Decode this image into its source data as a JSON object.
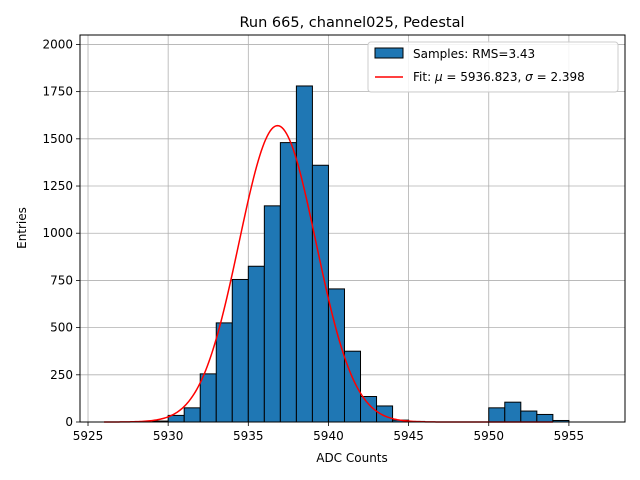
{
  "chart_data": {
    "type": "bar",
    "title": "Run 665, channel025, Pedestal",
    "xlabel": "ADC Counts",
    "ylabel": "Entries",
    "xlim": [
      5924.5,
      5958.5
    ],
    "ylim": [
      0,
      2050
    ],
    "xticks": [
      5925,
      5930,
      5935,
      5940,
      5945,
      5950,
      5955
    ],
    "yticks": [
      0,
      250,
      500,
      750,
      1000,
      1250,
      1500,
      1750,
      2000
    ],
    "grid": true,
    "legend_position": "top-right",
    "bin_width": 1,
    "histogram": {
      "name": "Samples: RMS=3.43",
      "color": "#1f77b4",
      "edge_color": "#000000",
      "bins": [
        {
          "x": 5929,
          "count": 5
        },
        {
          "x": 5930,
          "count": 35
        },
        {
          "x": 5931,
          "count": 75
        },
        {
          "x": 5932,
          "count": 255
        },
        {
          "x": 5933,
          "count": 525
        },
        {
          "x": 5934,
          "count": 755
        },
        {
          "x": 5935,
          "count": 825
        },
        {
          "x": 5936,
          "count": 1145
        },
        {
          "x": 5937,
          "count": 1480
        },
        {
          "x": 5938,
          "count": 1780
        },
        {
          "x": 5939,
          "count": 1360
        },
        {
          "x": 5940,
          "count": 705
        },
        {
          "x": 5941,
          "count": 375
        },
        {
          "x": 5942,
          "count": 135
        },
        {
          "x": 5943,
          "count": 85
        },
        {
          "x": 5944,
          "count": 10
        },
        {
          "x": 5945,
          "count": 3
        },
        {
          "x": 5950,
          "count": 75
        },
        {
          "x": 5951,
          "count": 105
        },
        {
          "x": 5952,
          "count": 58
        },
        {
          "x": 5953,
          "count": 40
        },
        {
          "x": 5954,
          "count": 8
        }
      ]
    },
    "fit": {
      "name": "Fit: μ = 5936.823, σ = 2.398",
      "legend_prefix": "Fit: ",
      "legend_mu": "μ",
      "legend_mid": " = 5936.823, ",
      "legend_sigma": "σ",
      "legend_suffix": " = 2.398",
      "color": "#ff0000",
      "mu": 5936.823,
      "sigma": 2.398,
      "amplitude": 1570,
      "x_range": [
        5926,
        5954
      ]
    }
  }
}
